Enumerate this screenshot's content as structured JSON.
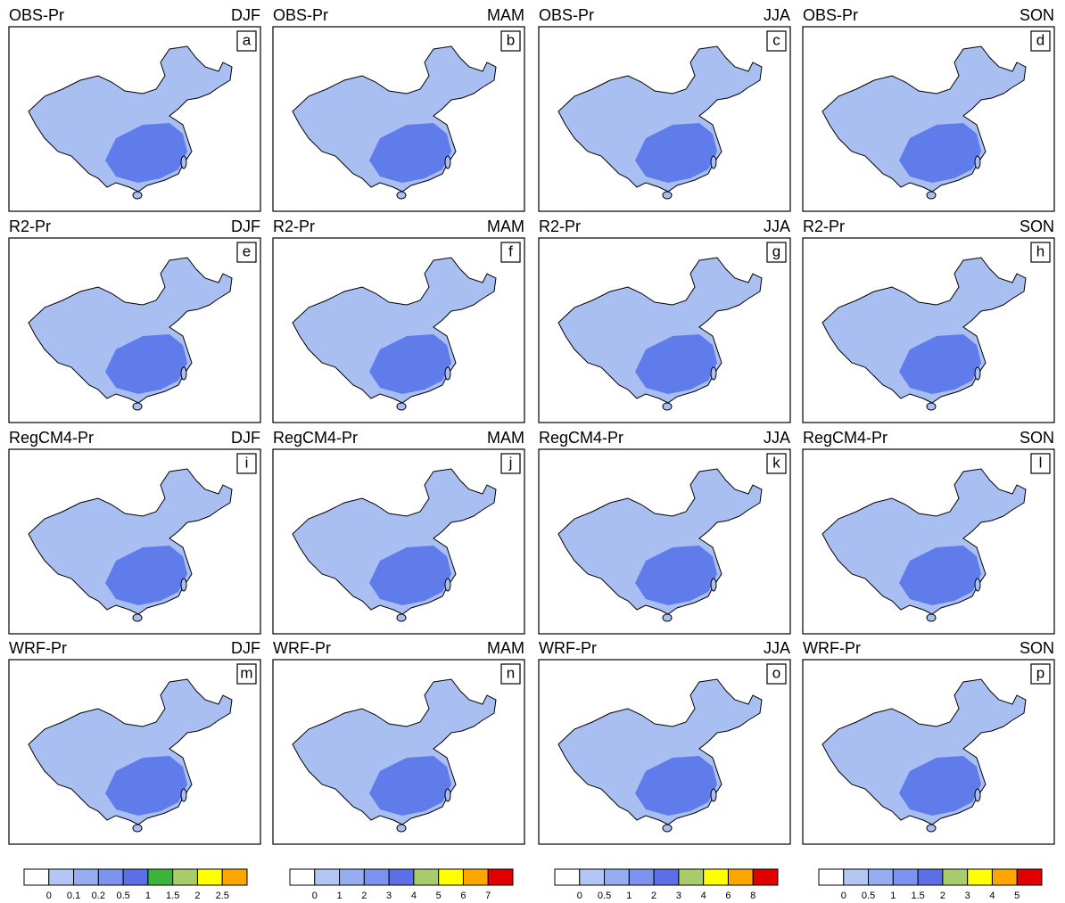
{
  "panels": [
    {
      "title": "OBS-Pr",
      "season": "DJF",
      "letter": "a"
    },
    {
      "title": "OBS-Pr",
      "season": "MAM",
      "letter": "b"
    },
    {
      "title": "OBS-Pr",
      "season": "JJA",
      "letter": "c"
    },
    {
      "title": "OBS-Pr",
      "season": "SON",
      "letter": "d"
    },
    {
      "title": "R2-Pr",
      "season": "DJF",
      "letter": "e"
    },
    {
      "title": "R2-Pr",
      "season": "MAM",
      "letter": "f"
    },
    {
      "title": "R2-Pr",
      "season": "JJA",
      "letter": "g"
    },
    {
      "title": "R2-Pr",
      "season": "SON",
      "letter": "h"
    },
    {
      "title": "RegCM4-Pr",
      "season": "DJF",
      "letter": "i"
    },
    {
      "title": "RegCM4-Pr",
      "season": "MAM",
      "letter": "j"
    },
    {
      "title": "RegCM4-Pr",
      "season": "JJA",
      "letter": "k"
    },
    {
      "title": "RegCM4-Pr",
      "season": "SON",
      "letter": "l"
    },
    {
      "title": "WRF-Pr",
      "season": "DJF",
      "letter": "m"
    },
    {
      "title": "WRF-Pr",
      "season": "MAM",
      "letter": "n"
    },
    {
      "title": "WRF-Pr",
      "season": "JJA",
      "letter": "o"
    },
    {
      "title": "WRF-Pr",
      "season": "SON",
      "letter": "p"
    }
  ],
  "colorbars": [
    {
      "colors": [
        "#ffffff",
        "#b4c6f4",
        "#97adf2",
        "#7b93ee",
        "#5c6fe6",
        "#3cb43c",
        "#a8cc6c",
        "#ffff00",
        "#ffa500"
      ],
      "ticks": [
        0,
        0.1,
        0.2,
        0.5,
        1,
        1.5,
        2,
        2.5
      ]
    },
    {
      "colors": [
        "#ffffff",
        "#b4c6f4",
        "#97adf2",
        "#7b93ee",
        "#5c6fe6",
        "#a8cc6c",
        "#ffff00",
        "#ffa500",
        "#e00000"
      ],
      "ticks": [
        0,
        1,
        2,
        3,
        4,
        5,
        6,
        7
      ]
    },
    {
      "colors": [
        "#ffffff",
        "#b4c6f4",
        "#97adf2",
        "#7b93ee",
        "#5c6fe6",
        "#a8cc6c",
        "#ffff00",
        "#ffa500",
        "#e00000"
      ],
      "ticks": [
        0,
        0.5,
        1,
        2,
        3,
        4,
        6,
        8
      ]
    },
    {
      "colors": [
        "#ffffff",
        "#b4c6f4",
        "#97adf2",
        "#7b93ee",
        "#5c6fe6",
        "#a8cc6c",
        "#ffff00",
        "#ffa500",
        "#e00000"
      ],
      "ticks": [
        0,
        0.5,
        1,
        1.5,
        2,
        3,
        4,
        5
      ]
    }
  ]
}
